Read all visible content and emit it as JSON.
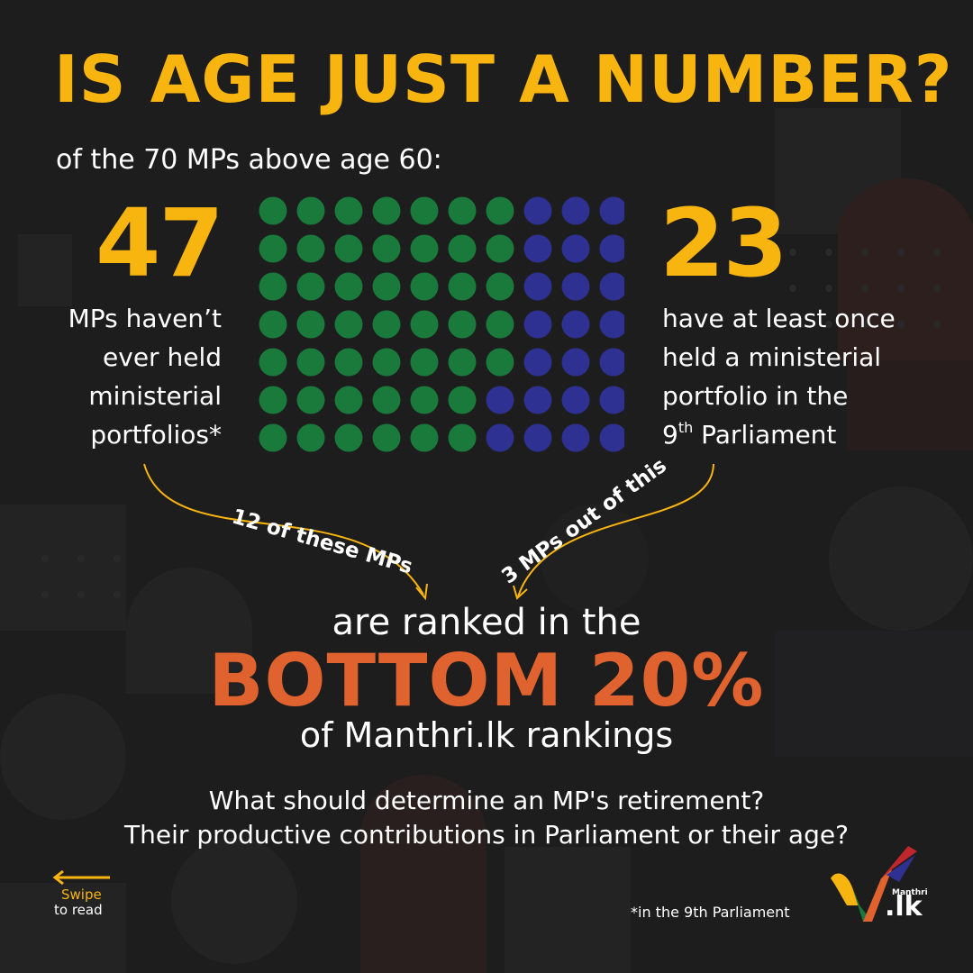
{
  "title": "IS AGE JUST A NUMBER?",
  "subtitle": "of the 70 MPs above age 60:",
  "left": {
    "number": "47",
    "lines": [
      "MPs haven’t",
      "ever held",
      "ministerial",
      "portfolios*"
    ]
  },
  "right": {
    "number": "23",
    "lines": [
      "have at least once",
      "held  a ministerial",
      "portfolio in the"
    ],
    "last_line_prefix": "9",
    "last_line_sup": "th",
    "last_line_suffix": " Parliament"
  },
  "dot_grid": {
    "rows": 7,
    "columns": 10,
    "total": 70,
    "green_count": 47,
    "blue_count": 23,
    "green_color": "#1a7a3c",
    "blue_color": "#2e3191"
  },
  "callouts": {
    "left": "12 of these MPs",
    "right": "3 MPs out of this"
  },
  "ranked_text": "are ranked in the",
  "highlight": "BOTTOM 20%",
  "rankings_text": "of Manthri.lk rankings",
  "question": {
    "line1": "What should determine an MP's retirement?",
    "line2": "Their productive contributions in Parliament or their age?"
  },
  "swipe": {
    "line1": "Swipe",
    "line2": "to read"
  },
  "footnote": "*in the 9th Parliament",
  "logo": {
    "small": "Manthri",
    "big": ".lk"
  },
  "colors": {
    "accent_yellow": "#f8b40f",
    "accent_orange": "#e0622e",
    "background": "#1d1d1d"
  }
}
